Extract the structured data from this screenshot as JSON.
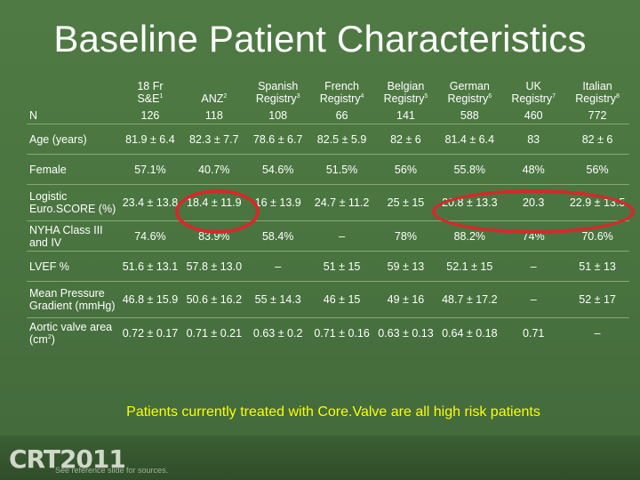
{
  "title": "Baseline Patient Characteristics",
  "columns": [
    {
      "name": "18 Fr",
      "name2": "S&E",
      "sup": "1"
    },
    {
      "name": "",
      "name2": "ANZ",
      "sup": "2"
    },
    {
      "name": "Spanish",
      "name2": "Registry",
      "sup": "3"
    },
    {
      "name": "French",
      "name2": "Registry",
      "sup": "4"
    },
    {
      "name": "Belgian",
      "name2": "Registry",
      "sup": "5"
    },
    {
      "name": "German",
      "name2": "Registry",
      "sup": "6"
    },
    {
      "name": "UK",
      "name2": "Registry",
      "sup": "7"
    },
    {
      "name": "Italian",
      "name2": "Registry",
      "sup": "8"
    }
  ],
  "n_row": {
    "label": "N",
    "values": [
      "126",
      "118",
      "108",
      "66",
      "141",
      "588",
      "460",
      "772"
    ]
  },
  "rows": [
    {
      "label": "Age (years)",
      "values": [
        "81.9 ± 6.4",
        "82.3 ± 7.7",
        "78.6 ± 6.7",
        "82.5 ± 5.9",
        "82 ± 6",
        "81.4 ± 6.4",
        "83",
        "82 ± 6"
      ]
    },
    {
      "label": "Female",
      "values": [
        "57.1%",
        "40.7%",
        "54.6%",
        "51.5%",
        "56%",
        "55.8%",
        "48%",
        "56%"
      ]
    },
    {
      "label": "Logistic Euro.SCORE (%)",
      "values": [
        "23.4 ± 13.8",
        "18.4 ± 11.9",
        "16 ± 13.9",
        "24.7 ± 11.2",
        "25 ± 15",
        "20.8 ± 13.3",
        "20.3",
        "22.9 ± 13.5"
      ]
    },
    {
      "label": "NYHA Class III and IV",
      "values": [
        "74.6%",
        "83.9%",
        "58.4%",
        "–",
        "78%",
        "88.2%",
        "74%",
        "70.6%"
      ]
    },
    {
      "label": "LVEF %",
      "values": [
        "51.6 ± 13.1",
        "57.8 ± 13.0",
        "–",
        "51 ± 15",
        "59 ± 13",
        "52.1 ± 15",
        "–",
        "51 ± 13"
      ]
    },
    {
      "label": "Mean Pressure Gradient (mmHg)",
      "values": [
        "46.8 ± 15.9",
        "50.6 ± 16.2",
        "55 ± 14.3",
        "46 ± 15",
        "49 ± 16",
        "48.7 ± 17.2",
        "–",
        "52 ± 17"
      ]
    },
    {
      "label": "Aortic valve area (cm",
      "label_sup": "2",
      "label_end": ")",
      "values": [
        "0.72 ± 0.17",
        "0.71 ± 0.21",
        "0.63 ± 0.2",
        "0.71 ± 0.16",
        "0.63 ± 0.13",
        "0.64 ± 0.18",
        "0.71",
        "–"
      ]
    }
  ],
  "footer_message": "Patients currently treated with Core.Valve are all high risk patients",
  "logo_text": "CRT2011",
  "reference_note": "See reference slide for sources.",
  "colors": {
    "background": "#4a7540",
    "highlight": "#d42a2a",
    "message": "#ffff00"
  }
}
